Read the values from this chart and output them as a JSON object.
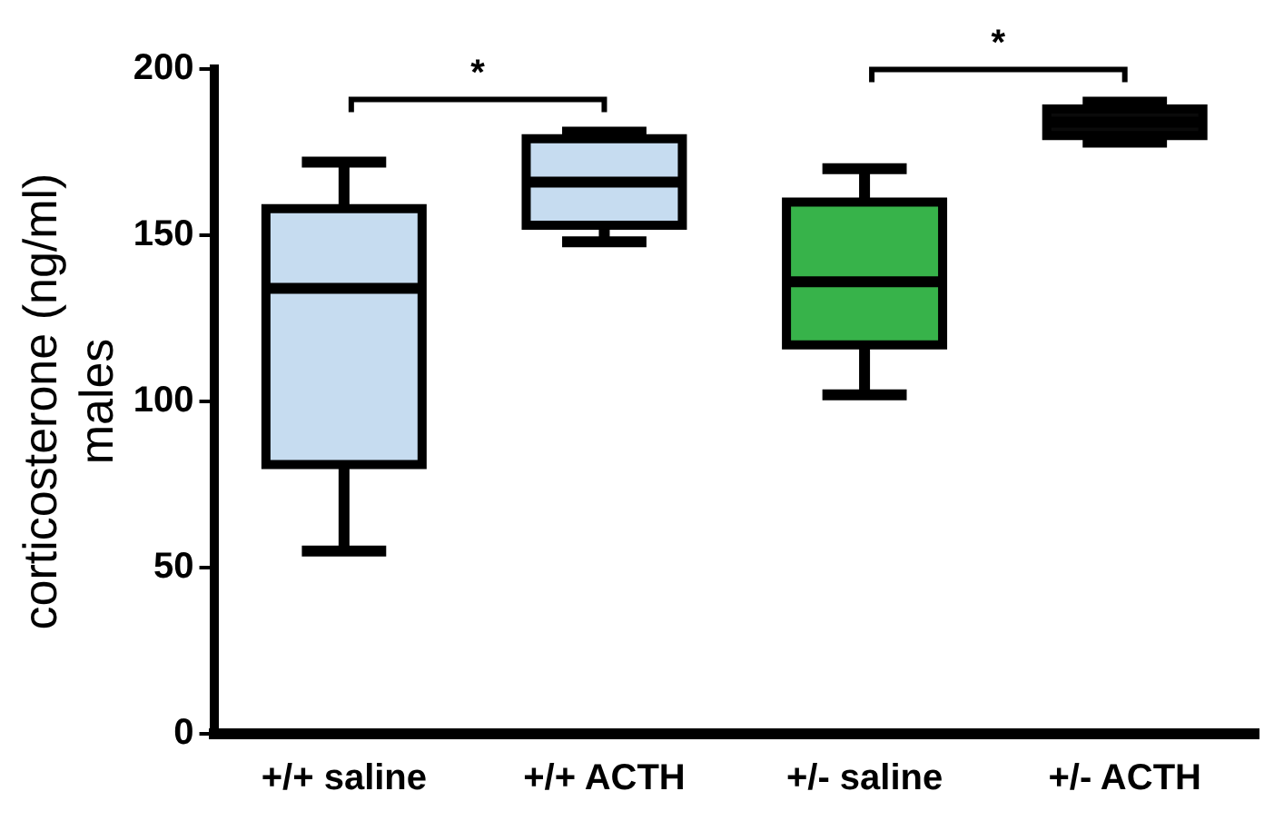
{
  "chart_data": {
    "type": "box",
    "ylabel": "corticosterone (ng/ml)\nmales",
    "categories": [
      "+/+ saline",
      "+/+ ACTH",
      "+/- saline",
      "+/- ACTH"
    ],
    "colors": [
      "#c6dcf0",
      "#c6dcf0",
      "#37b34a",
      "#0a0a0a"
    ],
    "boxes": [
      {
        "low": 55,
        "q1": 81,
        "median": 134,
        "q3": 158,
        "high": 172
      },
      {
        "low": 148,
        "q1": 153,
        "median": 166,
        "q3": 179,
        "high": 181
      },
      {
        "low": 102,
        "q1": 117,
        "median": 136,
        "q3": 160,
        "high": 170
      },
      {
        "low": 178,
        "q1": 180,
        "median": 184,
        "q3": 188,
        "high": 190
      }
    ],
    "ylim": [
      0,
      200
    ],
    "yticks": [
      0,
      50,
      100,
      150,
      200
    ],
    "grid": false,
    "legend": false,
    "annotations": [
      "*",
      "*"
    ]
  }
}
